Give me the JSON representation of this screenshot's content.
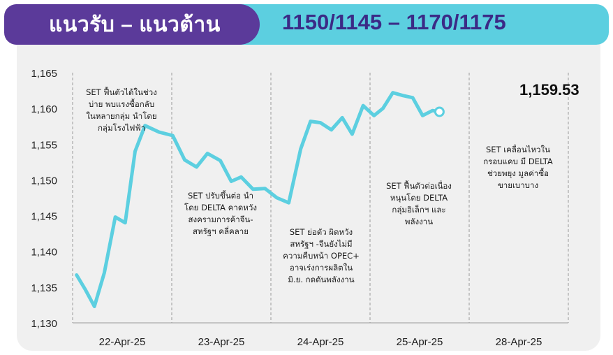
{
  "header": {
    "title": "แนวรับ – แนวต้าน",
    "levels": "1150/1145 – 1170/1175"
  },
  "colors": {
    "title_bg": "#5b3a9a",
    "levels_bg": "#5ccfe0",
    "levels_text": "#3b2a86",
    "line": "#5ccfe0",
    "panel_bg": "#f0f0f0"
  },
  "chart_data": {
    "type": "line",
    "ylim": [
      1130,
      1165
    ],
    "yticks": [
      "1,130",
      "1,135",
      "1,140",
      "1,145",
      "1,150",
      "1,155",
      "1,160",
      "1,165"
    ],
    "ytick_values": [
      1130,
      1135,
      1140,
      1145,
      1150,
      1155,
      1160,
      1165
    ],
    "categories": [
      "22-Apr-25",
      "23-Apr-25",
      "24-Apr-25",
      "25-Apr-25",
      "28-Apr-25"
    ],
    "grid": "dashed vertical separators between days",
    "series": [
      {
        "values": [
          [
            0.04,
            1136.7
          ],
          [
            0.13,
            1134.6
          ],
          [
            0.22,
            1132.3
          ],
          [
            0.32,
            1137.0
          ],
          [
            0.43,
            1144.8
          ],
          [
            0.53,
            1144.0
          ],
          [
            0.63,
            1154.0
          ],
          [
            0.73,
            1157.6
          ],
          [
            0.87,
            1156.7
          ],
          [
            1.01,
            1156.2
          ],
          [
            1.13,
            1152.8
          ],
          [
            1.25,
            1151.8
          ],
          [
            1.36,
            1153.7
          ],
          [
            1.49,
            1152.7
          ],
          [
            1.6,
            1149.8
          ],
          [
            1.7,
            1150.4
          ],
          [
            1.82,
            1148.7
          ],
          [
            1.94,
            1148.8
          ],
          [
            2.06,
            1147.5
          ],
          [
            2.18,
            1146.8
          ],
          [
            2.3,
            1154.3
          ],
          [
            2.4,
            1158.2
          ],
          [
            2.5,
            1158.0
          ],
          [
            2.61,
            1157.0
          ],
          [
            2.72,
            1158.7
          ],
          [
            2.82,
            1156.4
          ],
          [
            2.93,
            1160.4
          ],
          [
            3.04,
            1159.0
          ],
          [
            3.13,
            1160.0
          ],
          [
            3.23,
            1162.2
          ],
          [
            3.33,
            1161.8
          ],
          [
            3.43,
            1161.5
          ],
          [
            3.53,
            1159.0
          ],
          [
            3.63,
            1159.7
          ],
          [
            3.7,
            1159.53
          ]
        ]
      }
    ],
    "last_value_label": "1,159.53",
    "annotations": [
      "SET ฟื้นตัวได้ในช่วง\nบ่าย พบแรงซื้อกลับ\nในหลายกลุ่ม นำโดย\nกลุ่มโรงไฟฟ้า",
      "SET ปรับขึ้นต่อ นำ\nโดย DELTA คาดหวัง\nสงครามการค้าจีน-\nสหรัฐฯ คลี่คลาย",
      "SET ย่อตัว ผิดหวัง\nสหรัฐฯ -จีนยังไม่มี\nความคืบหน้า OPEC+\nอาจเร่งการผลิตใน\nมิ.ย. กดดันพลังงาน",
      "SET ฟื้นตัวต่อเนื่อง\nหนุนโดย DELTA\nกลุ่มอิเล็กฯ และ\nพลังงาน",
      "SET เคลื่อนไหวใน\nกรอบแคบ มี DELTA\nช่วยพยุง มูลค่าซื้อ\nขายเบาบาง"
    ]
  }
}
